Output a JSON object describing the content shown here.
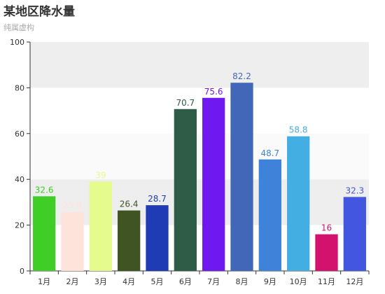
{
  "title": "某地区降水量",
  "subtitle": "纯属虚构",
  "chart_data": {
    "type": "bar",
    "title": "某地区降水量",
    "subtitle": "纯属虚构",
    "categories": [
      "1月",
      "2月",
      "3月",
      "4月",
      "5月",
      "6月",
      "7月",
      "8月",
      "9月",
      "10月",
      "11月",
      "12月"
    ],
    "values": [
      32.6,
      25.8,
      39,
      26.4,
      28.7,
      70.7,
      75.6,
      82.2,
      48.7,
      58.8,
      16,
      32.3
    ],
    "colors": [
      "#3fce26",
      "#fde3d9",
      "#e5fb8e",
      "#405322",
      "#1f3cb4",
      "#2e5c46",
      "#6f18ef",
      "#4267b8",
      "#3e83d9",
      "#42aee2",
      "#d3126d",
      "#4356df"
    ],
    "label_colors": [
      "#3fce26",
      "#fde3d9",
      "#e5fb8e",
      "#405322",
      "#1f3cb4",
      "#2e5c46",
      "#6f18ef",
      "#4267b8",
      "#3e83d9",
      "#42aee2",
      "#d3126d",
      "#4356df"
    ],
    "ylim": [
      0,
      100
    ],
    "yticks": [
      0,
      20,
      40,
      60,
      80,
      100
    ],
    "grid": "horizontal alternating bands",
    "band_colors": [
      "#ffffff",
      "#eeeeee",
      "#fafafa"
    ],
    "xlabel": "",
    "ylabel": ""
  }
}
